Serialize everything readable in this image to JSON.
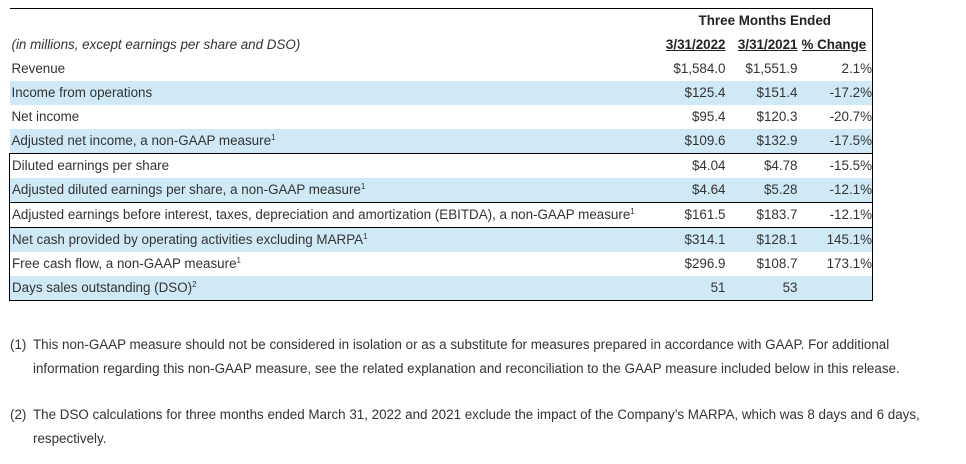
{
  "table": {
    "header_group": "Three Months Ended",
    "units_note": "(in millions, except earnings per share and DSO)",
    "col_headers": [
      "3/31/2022",
      "3/31/2021",
      "% Change"
    ],
    "rows": [
      {
        "label": "Revenue",
        "sup": "",
        "v2022": "$1,584.0",
        "v2021": "$1,551.9",
        "change": "2.1%"
      },
      {
        "label": "Income from operations",
        "sup": "",
        "v2022": "$125.4",
        "v2021": "$151.4",
        "change": "-17.2%"
      },
      {
        "label": "Net income",
        "sup": "",
        "v2022": "$95.4",
        "v2021": "$120.3",
        "change": "-20.7%"
      },
      {
        "label": "Adjusted net income, a non-GAAP measure",
        "sup": "1",
        "v2022": "$109.6",
        "v2021": "$132.9",
        "change": "-17.5%"
      },
      {
        "label": "Diluted earnings per share",
        "sup": "",
        "v2022": "$4.04",
        "v2021": "$4.78",
        "change": "-15.5%"
      },
      {
        "label": "Adjusted diluted earnings per share, a non-GAAP measure",
        "sup": "1",
        "v2022": "$4.64",
        "v2021": "$5.28",
        "change": "-12.1%"
      },
      {
        "label": "Adjusted earnings before interest, taxes, depreciation and amortization (EBITDA), a non-GAAP measure",
        "sup": "1",
        "v2022": "$161.5",
        "v2021": "$183.7",
        "change": "-12.1%"
      },
      {
        "label": "Net cash provided by operating activities excluding MARPA",
        "sup": "1",
        "v2022": "$314.1",
        "v2021": "$128.1",
        "change": "145.1%"
      },
      {
        "label": "Free cash flow, a non-GAAP measure",
        "sup": "1",
        "v2022": "$296.9",
        "v2021": "$108.7",
        "change": "173.1%"
      },
      {
        "label": "Days sales outstanding (DSO)",
        "sup": "2",
        "v2022": "51",
        "v2021": "53",
        "change": ""
      }
    ]
  },
  "footnotes": [
    {
      "marker": "(1)",
      "text": "This non-GAAP measure should not be considered in isolation or as a substitute for measures prepared in accordance with GAAP. For additional information regarding this non-GAAP measure, see the related explanation and reconciliation to the GAAP measure included below in this release."
    },
    {
      "marker": "(2)",
      "text": "The DSO calculations for three months ended March 31, 2022 and 2021 exclude the impact of the Company’s MARPA, which was 8 days and 6 days, respectively."
    }
  ]
}
